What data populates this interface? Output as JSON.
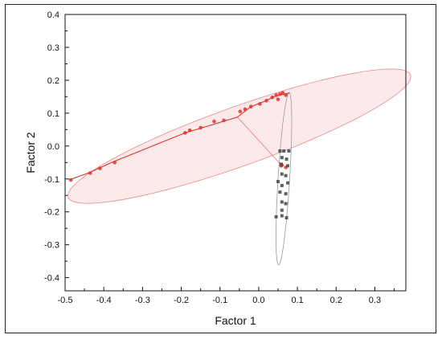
{
  "chart_data": {
    "type": "scatter",
    "title": "",
    "xlabel": "Factor 1",
    "ylabel": "Factor 2",
    "xlim": [
      -0.5,
      0.38
    ],
    "ylim": [
      -0.44,
      0.4
    ],
    "xticks": [
      -0.5,
      -0.4,
      -0.3,
      -0.2,
      -0.1,
      0.0,
      0.1,
      0.2,
      0.3
    ],
    "xtick_labels": [
      "-0.5",
      "-0.4",
      "-0.3",
      "-0.2",
      "-0.1",
      "0.0",
      "0.1",
      "0.2",
      "0.3"
    ],
    "yticks": [
      0.4,
      0.3,
      0.2,
      0.1,
      0.0,
      -0.1,
      -0.2,
      -0.3,
      -0.4
    ],
    "ytick_labels": [
      "0.4",
      "0.3",
      "0.2",
      "0.1",
      "0.0",
      "-0.1",
      "-0.2",
      "-0.3",
      "-0.4"
    ],
    "grid": false,
    "colors": {
      "red_series": "#e0302c",
      "dark_series": "#444444",
      "red_ellipse_fill": "#fbe3e3",
      "red_ellipse_stroke": "#e98a8a",
      "dark_ellipse_stroke": "#999999"
    },
    "series": [
      {
        "color": "red",
        "marker": "circle",
        "points": [
          [
            -0.485,
            -0.103
          ],
          [
            -0.435,
            -0.082
          ],
          [
            -0.41,
            -0.068
          ],
          [
            -0.372,
            -0.05
          ],
          [
            -0.19,
            0.04
          ],
          [
            -0.178,
            0.048
          ],
          [
            -0.15,
            0.056
          ],
          [
            -0.115,
            0.075
          ],
          [
            -0.09,
            0.078
          ],
          [
            -0.048,
            0.105
          ],
          [
            -0.035,
            0.112
          ],
          [
            -0.02,
            0.12
          ],
          [
            0.003,
            0.128
          ],
          [
            0.02,
            0.138
          ],
          [
            0.035,
            0.148
          ],
          [
            0.045,
            0.155
          ],
          [
            0.055,
            0.158
          ],
          [
            0.062,
            0.162
          ],
          [
            0.07,
            0.155
          ],
          [
            0.05,
            0.142
          ],
          [
            0.06,
            -0.058
          ],
          [
            0.07,
            -0.065
          ],
          [
            0.058,
            -0.06
          ]
        ],
        "path": [
          [
            -0.49,
            -0.103
          ],
          [
            -0.44,
            -0.082
          ],
          [
            -0.38,
            -0.05
          ],
          [
            -0.19,
            0.04
          ],
          [
            -0.055,
            0.088
          ],
          [
            -0.02,
            0.12
          ],
          [
            0.015,
            0.136
          ],
          [
            0.04,
            0.15
          ],
          [
            0.08,
            0.162
          ]
        ]
      },
      {
        "color": "dark",
        "marker": "square",
        "points": [
          [
            0.055,
            -0.015
          ],
          [
            0.065,
            -0.015
          ],
          [
            0.078,
            -0.015
          ],
          [
            0.06,
            -0.035
          ],
          [
            0.072,
            -0.04
          ],
          [
            0.058,
            -0.055
          ],
          [
            0.075,
            -0.06
          ],
          [
            0.06,
            -0.085
          ],
          [
            0.07,
            -0.09
          ],
          [
            0.05,
            -0.108
          ],
          [
            0.075,
            -0.112
          ],
          [
            0.06,
            -0.12
          ],
          [
            0.055,
            -0.14
          ],
          [
            0.07,
            -0.145
          ],
          [
            0.06,
            -0.17
          ],
          [
            0.07,
            -0.175
          ],
          [
            0.06,
            -0.195
          ],
          [
            0.045,
            -0.215
          ],
          [
            0.06,
            -0.212
          ],
          [
            0.072,
            -0.218
          ]
        ]
      }
    ],
    "ellipses": [
      {
        "color": "red",
        "center": [
          -0.05,
          0.03
        ],
        "semi_axes": [
          0.48,
          0.088
        ],
        "angle_deg": 23
      },
      {
        "color": "dark",
        "center": [
          0.065,
          -0.1
        ],
        "semi_axes": [
          0.262,
          0.015
        ],
        "angle_deg": 87
      }
    ]
  }
}
